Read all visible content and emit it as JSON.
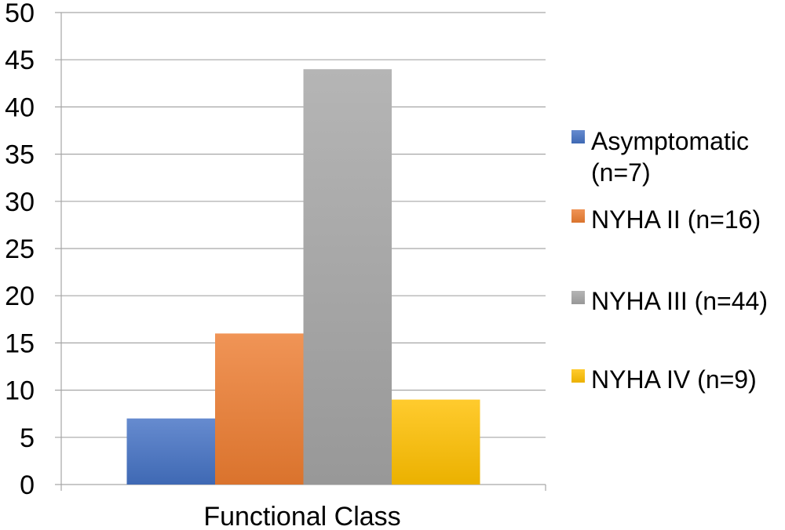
{
  "chart_data": {
    "type": "bar",
    "categories": [
      "Functional Class"
    ],
    "xlabel": "Functional Class",
    "ylabel": "",
    "ylim": [
      0,
      50
    ],
    "yticks": [
      0,
      5,
      10,
      15,
      20,
      25,
      30,
      35,
      40,
      45,
      50
    ],
    "grid": true,
    "legend_position": "right",
    "series": [
      {
        "name": "Asymptomatic (n=7)",
        "legend_lines": [
          "Asymptomatic",
          "(n=7)"
        ],
        "values": [
          7
        ],
        "color": "#4472c4"
      },
      {
        "name": "NYHA II (n=16)",
        "legend_lines": [
          "NYHA II (n=16)"
        ],
        "values": [
          16
        ],
        "color": "#ed7d31"
      },
      {
        "name": "NYHA III (n=44)",
        "legend_lines": [
          "NYHA III (n=44)"
        ],
        "values": [
          44
        ],
        "color": "#a5a5a5"
      },
      {
        "name": "NYHA IV (n=9)",
        "legend_lines": [
          "NYHA IV (n=9)"
        ],
        "values": [
          9
        ],
        "color": "#ffc000"
      }
    ]
  }
}
